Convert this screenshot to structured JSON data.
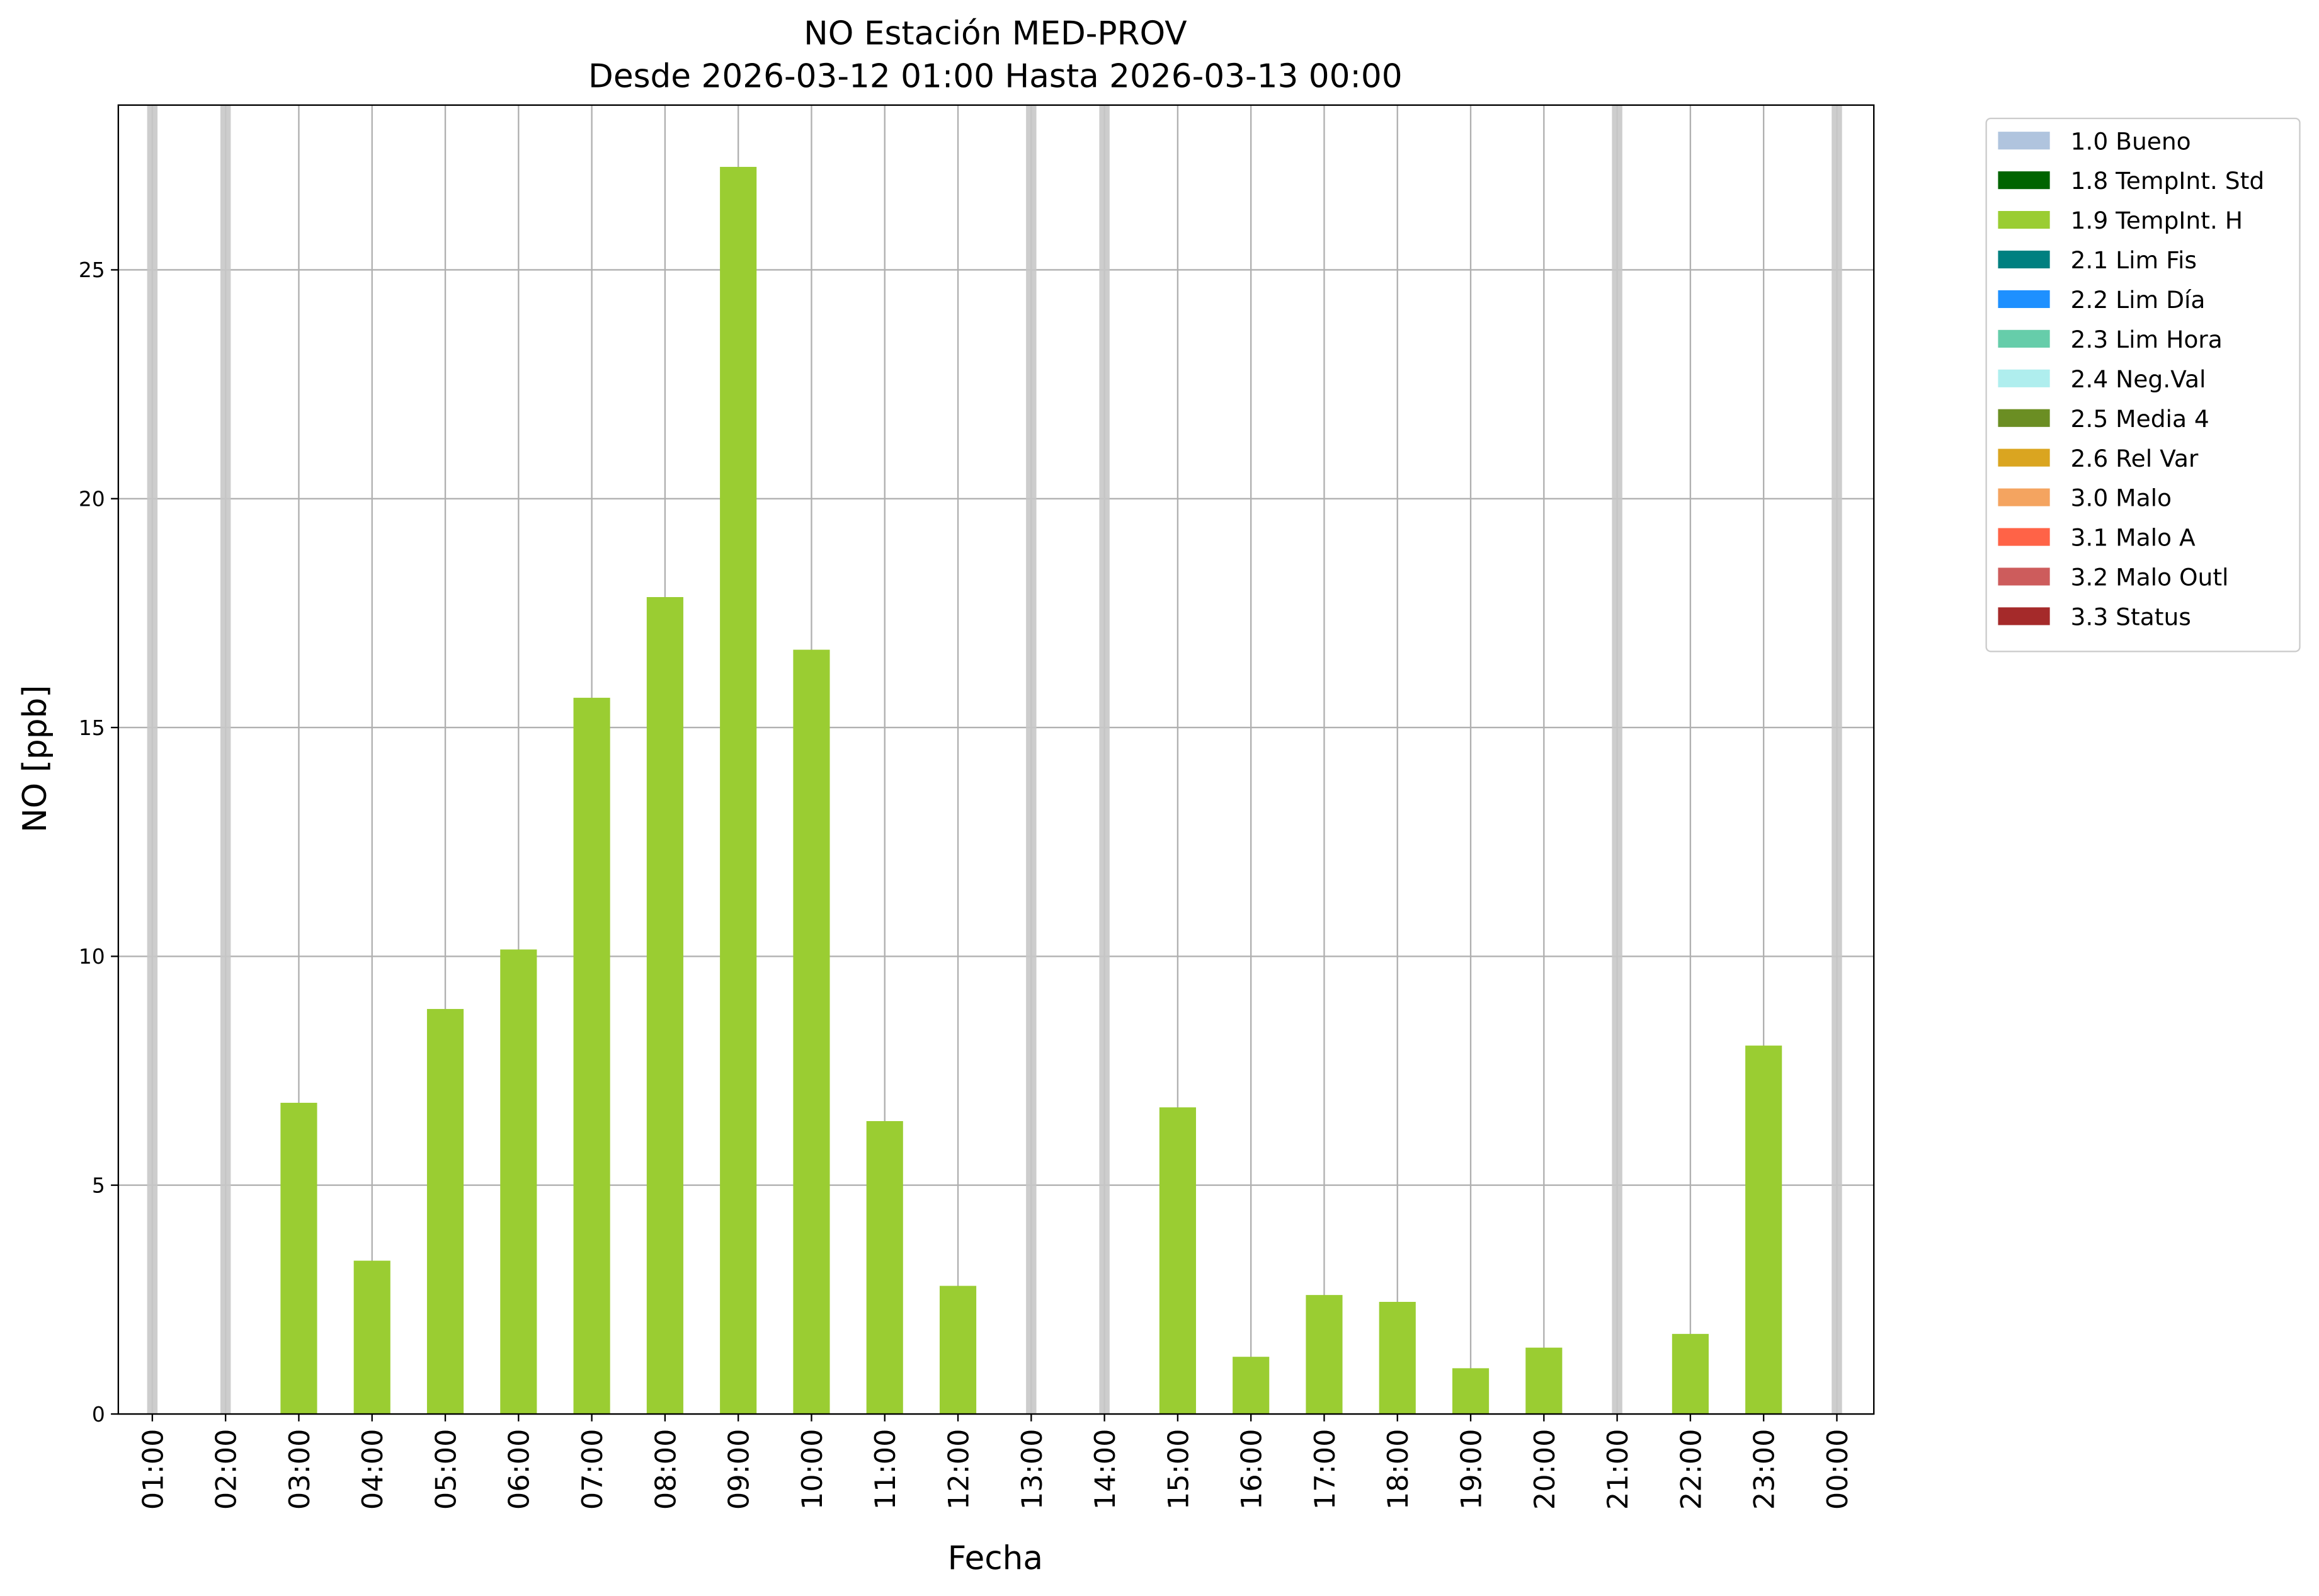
{
  "chart_data": {
    "type": "bar",
    "title": "NO Estación MED-PROV",
    "subtitle": "Desde 2026-03-12 01:00 Hasta 2026-03-13 00:00",
    "x_label": "Fecha",
    "y_label": "NO [ppb]",
    "categories": [
      "01:00",
      "02:00",
      "03:00",
      "04:00",
      "05:00",
      "06:00",
      "07:00",
      "08:00",
      "09:00",
      "10:00",
      "11:00",
      "12:00",
      "13:00",
      "14:00",
      "15:00",
      "16:00",
      "17:00",
      "18:00",
      "19:00",
      "20:00",
      "21:00",
      "22:00",
      "23:00",
      "00:00"
    ],
    "series": [
      {
        "name": "1.0 Bueno",
        "color": "#b0c4de"
      },
      {
        "name": "1.8 TempInt. Std",
        "color": "#006400"
      },
      {
        "name": "1.9 TempInt. H",
        "color": "#9acd32",
        "values": [
          null,
          null,
          6.8,
          3.35,
          8.85,
          10.15,
          15.65,
          17.85,
          27.25,
          16.7,
          6.4,
          2.8,
          null,
          null,
          6.7,
          1.25,
          2.6,
          2.45,
          1.0,
          1.45,
          null,
          1.75,
          8.05,
          null
        ]
      },
      {
        "name": "2.1 Lim Fis",
        "color": "#008080"
      },
      {
        "name": "2.2 Lim Día",
        "color": "#1e90ff"
      },
      {
        "name": "2.3 Lim Hora",
        "color": "#66cdaa"
      },
      {
        "name": "2.4 Neg.Val",
        "color": "#afeeee"
      },
      {
        "name": "2.5 Media 4",
        "color": "#6b8e23"
      },
      {
        "name": "2.6 Rel Var",
        "color": "#daa520"
      },
      {
        "name": "3.0 Malo",
        "color": "#f4a460"
      },
      {
        "name": "3.1 Malo A",
        "color": "#ff6347"
      },
      {
        "name": "3.2 Malo Outl",
        "color": "#cd5c5c"
      },
      {
        "name": "3.3 Status",
        "color": "#a52a2a"
      }
    ],
    "ylim": [
      0,
      28.6
    ],
    "yticks": [
      0,
      5,
      10,
      15,
      20,
      25
    ],
    "grid": true,
    "missing_color": "#c8c8c8",
    "legend_position": "outside-upper-right"
  }
}
